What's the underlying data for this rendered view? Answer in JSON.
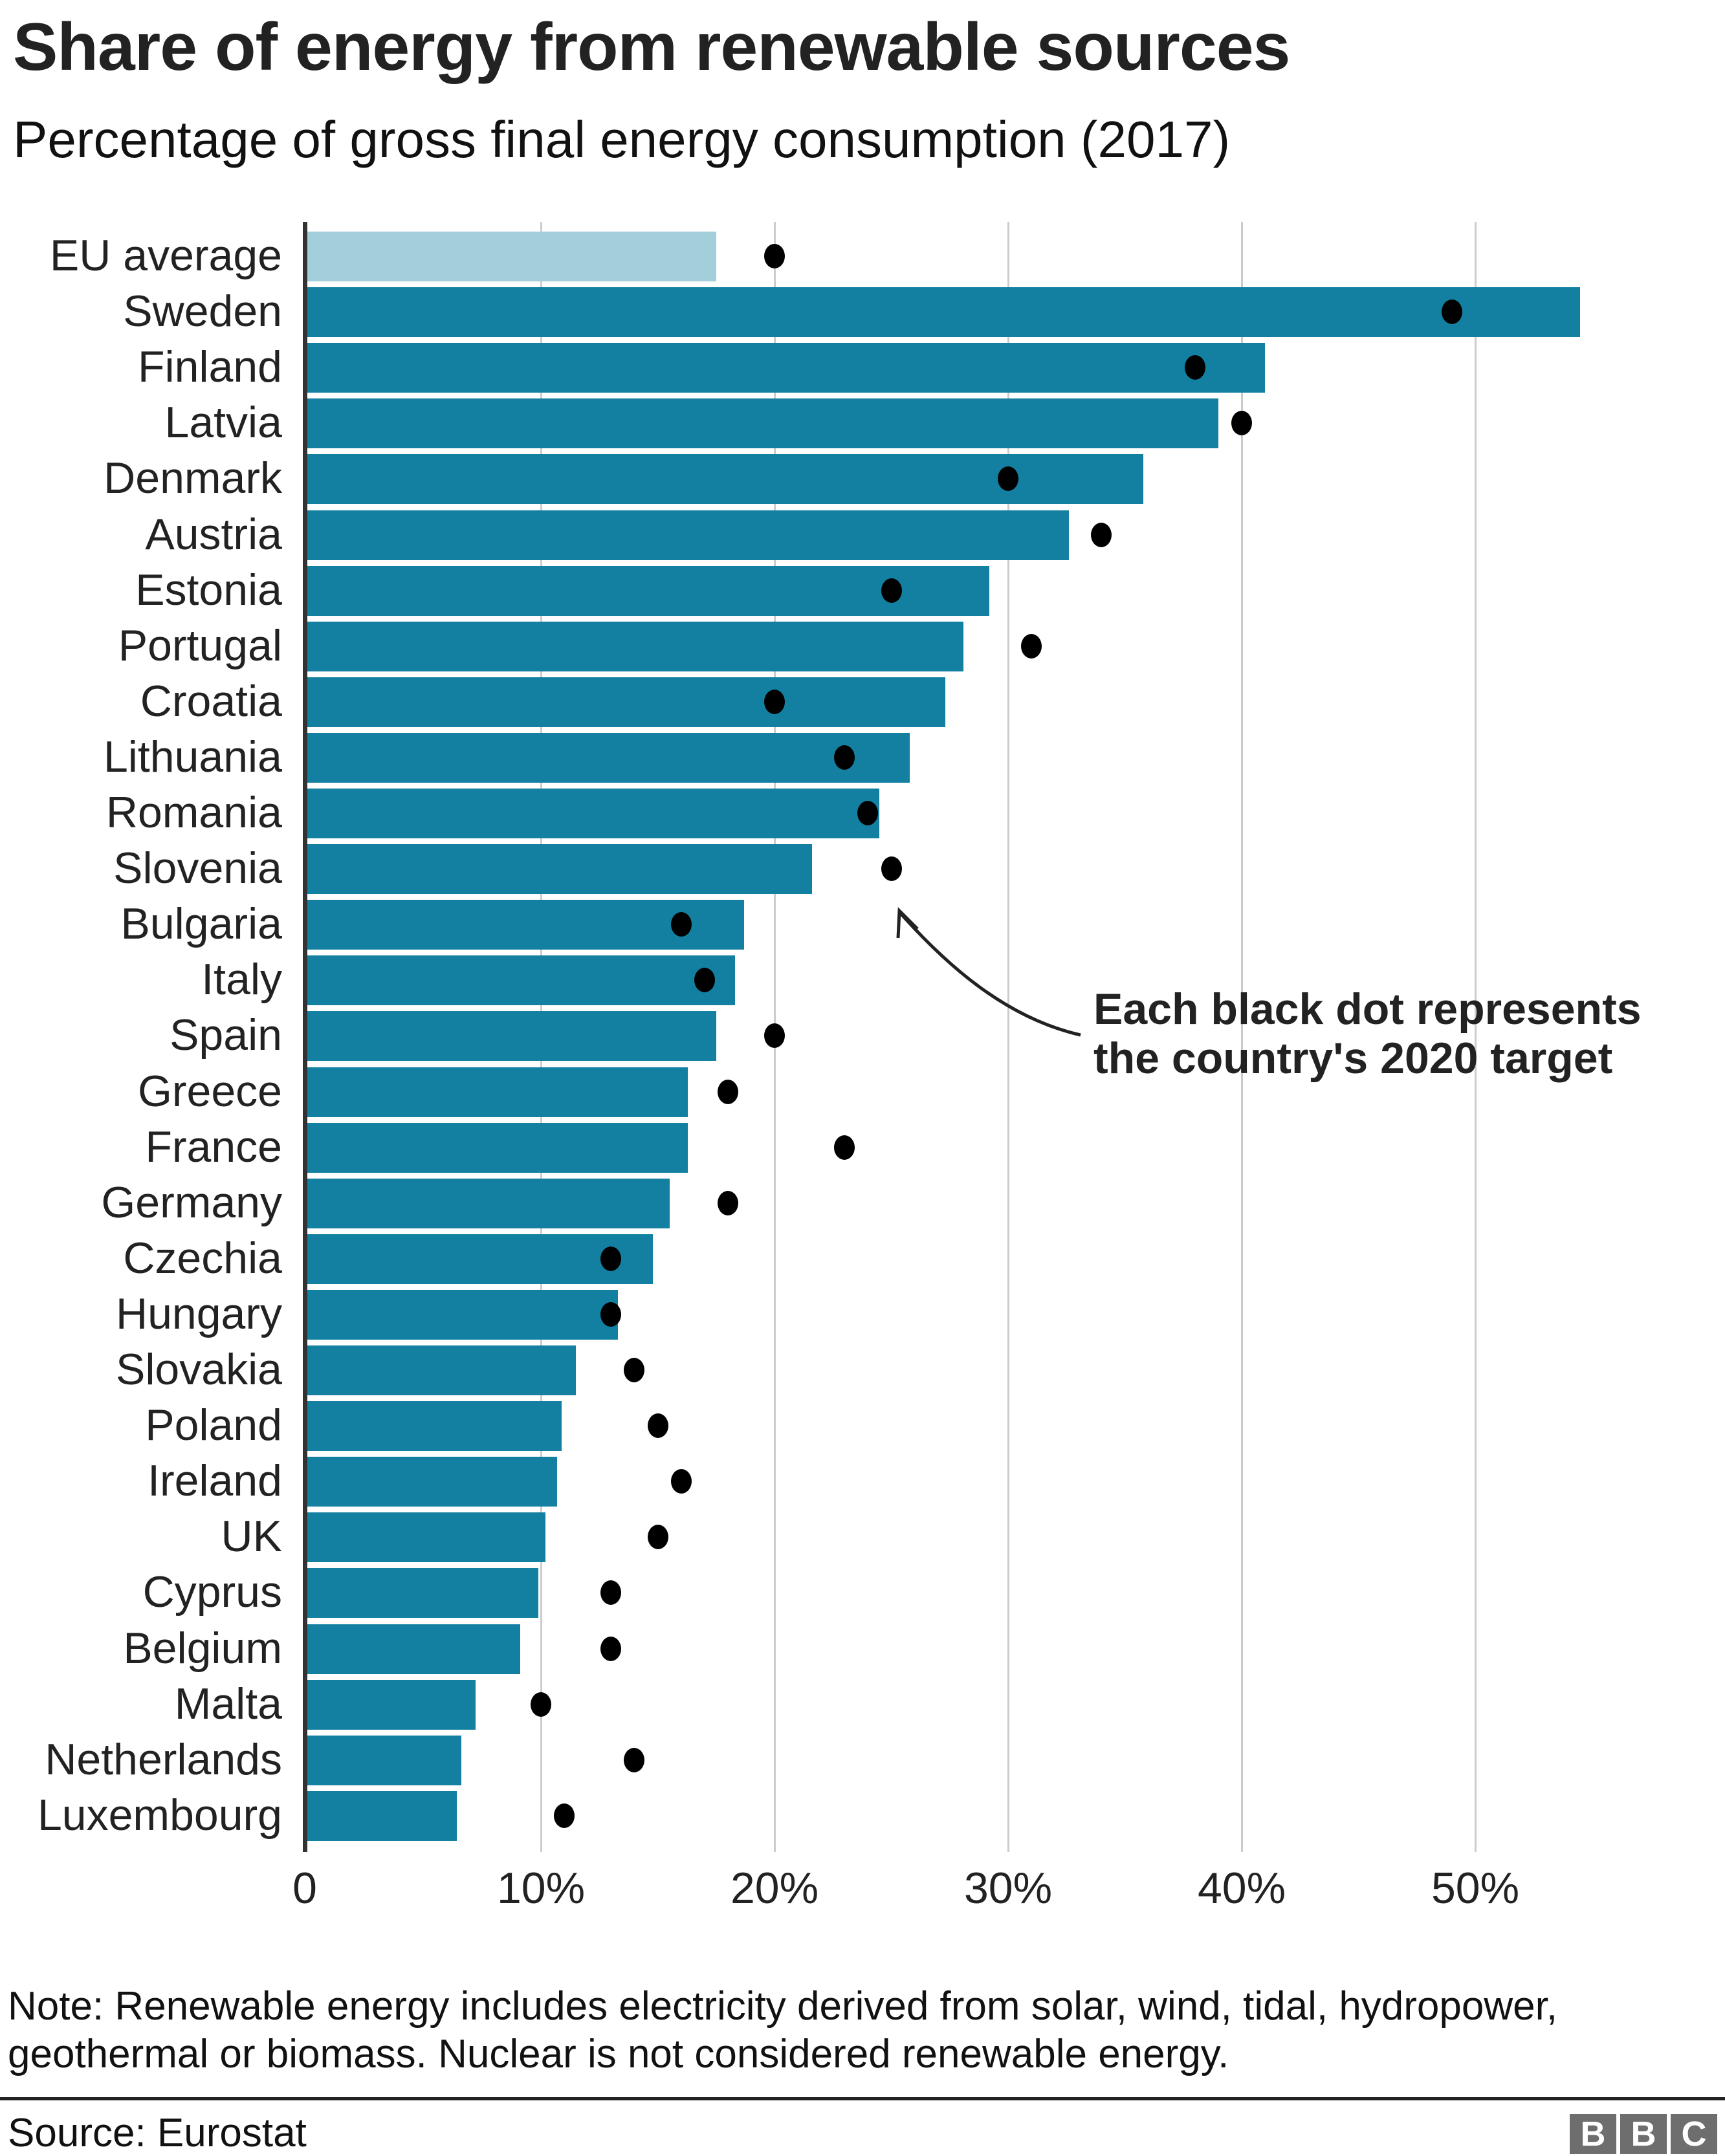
{
  "header": {
    "title": "Share of energy from renewable sources",
    "subtitle": "Percentage of gross final energy consumption (2017)"
  },
  "axis": {
    "ticks": [
      "0",
      "10%",
      "20%",
      "30%",
      "40%",
      "50%"
    ]
  },
  "annotation": {
    "line1": "Each black dot represents",
    "line2": "the country's 2020 target"
  },
  "footer": {
    "note": "Note: Renewable energy includes electricity derived from solar, wind, tidal, hydropower, geothermal or biomass. Nuclear is not considered renewable energy.",
    "source": "Source: Eurostat",
    "logo_letters": [
      "B",
      "B",
      "C"
    ]
  },
  "colors": {
    "bar": "#1380a1",
    "eu_bar": "#a2cfd9",
    "dot": "#000000",
    "gridline": "#cccccc"
  },
  "chart_data": {
    "type": "bar",
    "orientation": "horizontal",
    "title": "Share of energy from renewable sources",
    "subtitle": "Percentage of gross final energy consumption (2017)",
    "xlabel": "",
    "ylabel": "",
    "xlim": [
      0,
      55
    ],
    "x_ticks": [
      "0",
      "10%",
      "20%",
      "30%",
      "40%",
      "50%"
    ],
    "grid": true,
    "categories": [
      "EU average",
      "Sweden",
      "Finland",
      "Latvia",
      "Denmark",
      "Austria",
      "Estonia",
      "Portugal",
      "Croatia",
      "Lithuania",
      "Romania",
      "Slovenia",
      "Bulgaria",
      "Italy",
      "Spain",
      "Greece",
      "France",
      "Germany",
      "Czechia",
      "Hungary",
      "Slovakia",
      "Poland",
      "Ireland",
      "UK",
      "Cyprus",
      "Belgium",
      "Malta",
      "Netherlands",
      "Luxembourg"
    ],
    "series": [
      {
        "name": "Share of renewable energy 2017 (%)",
        "type": "bar",
        "values": [
          17.5,
          54.5,
          41.0,
          39.0,
          35.8,
          32.6,
          29.2,
          28.1,
          27.3,
          25.8,
          24.5,
          21.6,
          18.7,
          18.3,
          17.5,
          16.3,
          16.3,
          15.5,
          14.8,
          13.3,
          11.5,
          10.9,
          10.7,
          10.2,
          9.9,
          9.1,
          7.2,
          6.6,
          6.4
        ]
      },
      {
        "name": "2020 target (%)",
        "type": "scatter",
        "values": [
          20,
          49,
          38,
          40,
          30,
          34,
          25,
          31,
          20,
          23,
          24,
          25,
          16,
          17,
          20,
          18,
          23,
          18,
          13,
          13,
          14,
          15,
          16,
          15,
          13,
          13,
          10,
          14,
          11
        ]
      }
    ],
    "annotations": [
      "Each black dot represents the country's 2020 target"
    ],
    "note": "Note: Renewable energy includes electricity derived from solar, wind, tidal, hydropower, geothermal or biomass. Nuclear is not considered renewable energy.",
    "source": "Source: Eurostat"
  }
}
